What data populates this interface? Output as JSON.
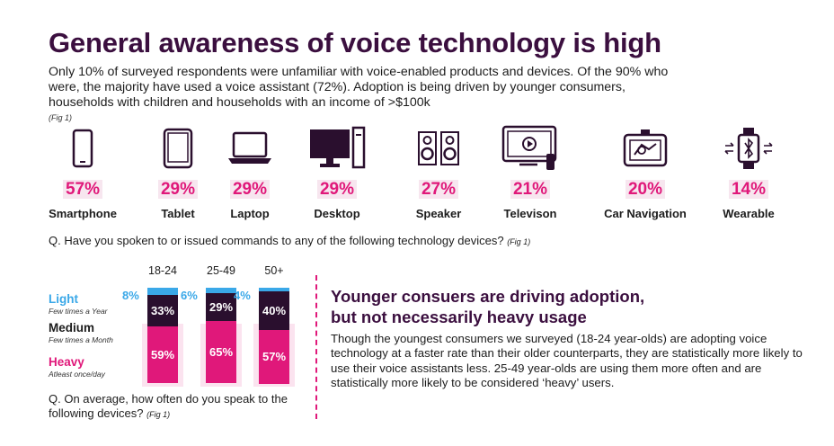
{
  "title": "General awareness of voice technology is high",
  "subtitle": "Only 10% of surveyed respondents were unfamiliar with voice-enabled products and devices. Of the 90% who were, the majority have used a voice assistant (72%). Adoption is being driven by younger consumers, households with children and households with an income of >$100k",
  "fig_note": "(Fig 1)",
  "question1": "Q. Have you spoken to or issued commands to any of the following technology devices?",
  "question1_fig": "(Fig 1)",
  "question2_line1": "Q. On average, how often do you speak to the",
  "question2_line2": "following devices?",
  "question2_fig": "(Fig 1)",
  "right_heading_line1": "Younger consuers are driving adoption,",
  "right_heading_line2": "but not necessarily heavy usage",
  "right_text": "Though the youngest consumers we surveyed (18-24 year-olds) are adopting voice technology at a faster rate than their older counterparts, they are statistically more likely to use their voice assistants less. 25-49 year-olds are using them more often and are statistically more likely to be considered ‘heavy’ users.",
  "legend": [
    {
      "name": "Light",
      "desc": "Few times a Year",
      "color": "#3aa8e8"
    },
    {
      "name": "Medium",
      "desc": "Few times a Month",
      "color": "#2a0f2e"
    },
    {
      "name": "Heavy",
      "desc": "Atleast once/day",
      "color": "#e0187a"
    }
  ],
  "colors": {
    "accent_pink": "#e0187a",
    "dark_purple": "#3b0f3f",
    "light_blue": "#3aa8e8",
    "medium_dark": "#2a0f2e"
  },
  "chart_data": [
    {
      "type": "bar",
      "categories": [
        "Smartphone",
        "Tablet",
        "Laptop",
        "Desktop",
        "Speaker",
        "Televison",
        "Car Navigation",
        "Wearable"
      ],
      "values": [
        57,
        29,
        29,
        29,
        27,
        21,
        20,
        14
      ],
      "labels": [
        "57%",
        "29%",
        "29%",
        "29%",
        "27%",
        "21%",
        "20%",
        "14%"
      ],
      "icons": [
        "smartphone-icon",
        "tablet-icon",
        "laptop-icon",
        "desktop-icon",
        "speaker-icon",
        "television-icon",
        "car-navigation-icon",
        "wearable-icon"
      ]
    },
    {
      "type": "bar",
      "stacked": true,
      "categories": [
        "18-24",
        "25-49",
        "50+"
      ],
      "series": [
        {
          "name": "Light",
          "values": [
            8,
            6,
            4
          ],
          "labels": [
            "8%",
            "6%",
            "4%"
          ]
        },
        {
          "name": "Medium",
          "values": [
            33,
            29,
            40
          ],
          "labels": [
            "33%",
            "29%",
            "40%"
          ]
        },
        {
          "name": "Heavy",
          "values": [
            59,
            65,
            57
          ],
          "labels": [
            "59%",
            "65%",
            "57%"
          ]
        }
      ],
      "ylim": [
        0,
        100
      ]
    }
  ]
}
